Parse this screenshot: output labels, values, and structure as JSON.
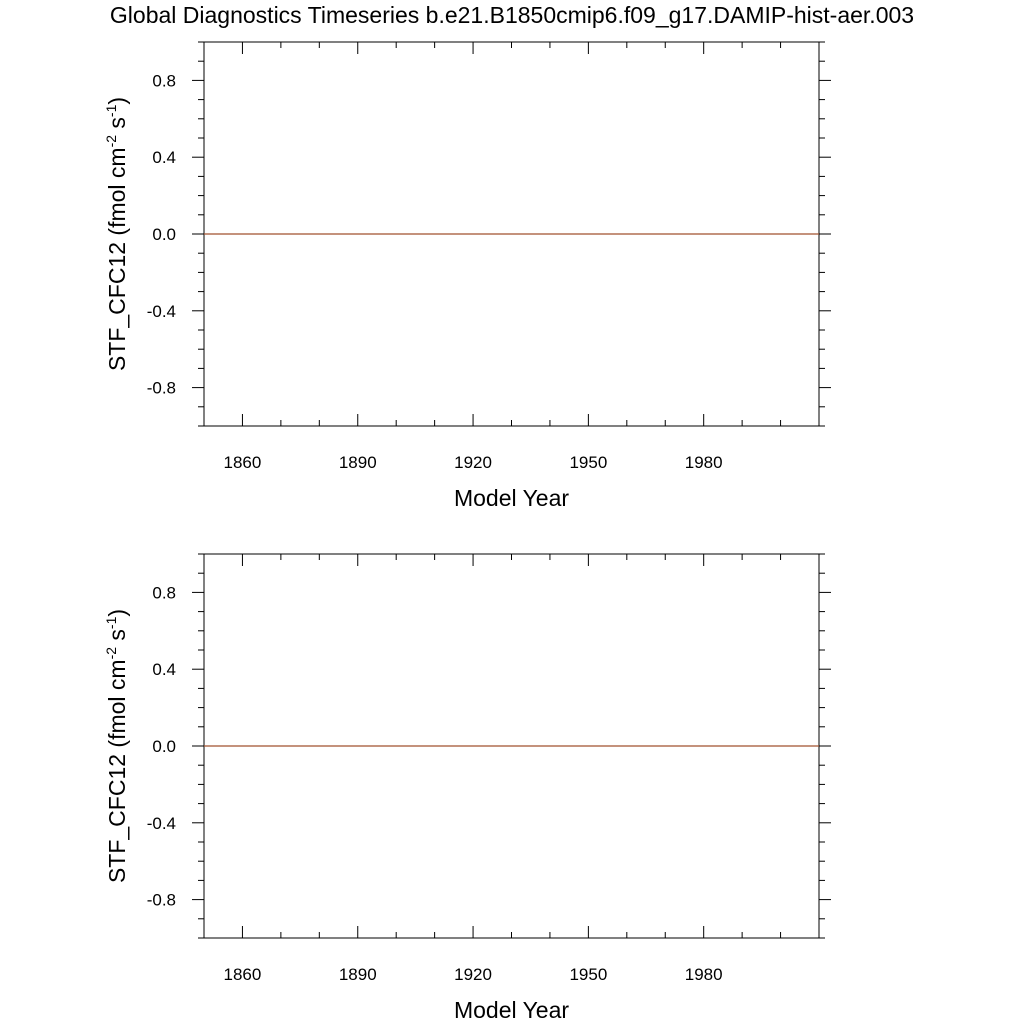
{
  "title": "Global Diagnostics Timeseries b.e21.B1850cmip6.f09_g17.DAMIP-hist-aer.003",
  "colors": {
    "series_line": "#a0522d",
    "frame": "#000000"
  },
  "chart_data": [
    {
      "type": "line",
      "title": "",
      "xlabel": "Model Year",
      "ylabel": "STF_CFC12 (fmol cm-2 s-1)",
      "ylabel_parts": {
        "main": "STF_CFC12 (fmol cm",
        "exp1": "-2",
        "mid": " s",
        "exp2": "-1",
        "end": ")"
      },
      "xlim": [
        1850,
        2010
      ],
      "ylim": [
        -1.0,
        1.0
      ],
      "x_ticks": [
        1860,
        1890,
        1920,
        1950,
        1980
      ],
      "x_minor_step": 10,
      "y_ticks": [
        0.8,
        0.4,
        0.0,
        -0.4,
        -0.8
      ],
      "y_tick_labels": [
        "0.8",
        "0.4",
        "0.0",
        "-0.4",
        "-0.8"
      ],
      "y_minor_step": 0.1,
      "grid": false,
      "series": [
        {
          "x": [
            1850,
            2010
          ],
          "y": [
            0.0,
            0.0
          ]
        }
      ]
    },
    {
      "type": "line",
      "title": "",
      "xlabel": "Model Year",
      "ylabel": "STF_CFC12 (fmol cm-2 s-1)",
      "ylabel_parts": {
        "main": "STF_CFC12 (fmol cm",
        "exp1": "-2",
        "mid": " s",
        "exp2": "-1",
        "end": ")"
      },
      "xlim": [
        1850,
        2010
      ],
      "ylim": [
        -1.0,
        1.0
      ],
      "x_ticks": [
        1860,
        1890,
        1920,
        1950,
        1980
      ],
      "x_minor_step": 10,
      "y_ticks": [
        0.8,
        0.4,
        0.0,
        -0.4,
        -0.8
      ],
      "y_tick_labels": [
        "0.8",
        "0.4",
        "0.0",
        "-0.4",
        "-0.8"
      ],
      "y_minor_step": 0.1,
      "grid": false,
      "series": [
        {
          "x": [
            1850,
            2010
          ],
          "y": [
            0.0,
            0.0
          ]
        }
      ]
    }
  ]
}
